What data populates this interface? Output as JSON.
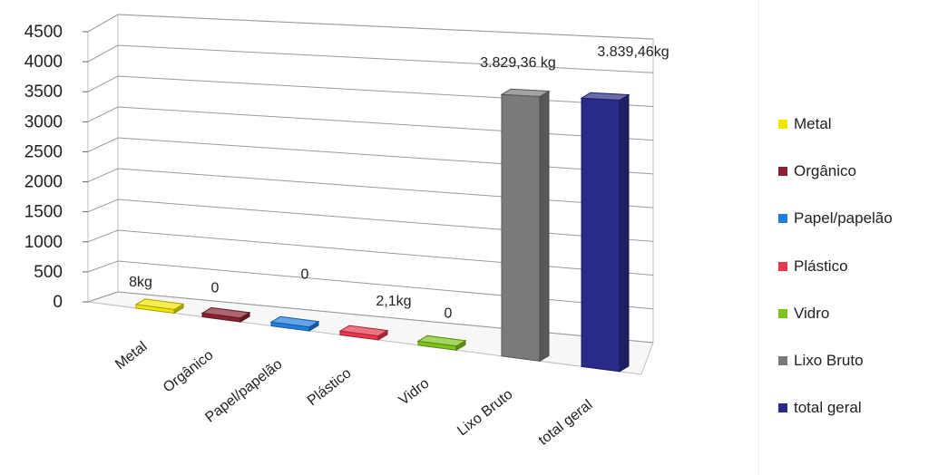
{
  "chart_data": {
    "type": "bar",
    "categories": [
      "Metal",
      "Orgânico",
      "Papel/papelão",
      "Plástico",
      "Vidro",
      "Lixo Bruto",
      "total geral"
    ],
    "values": [
      8,
      0,
      0,
      2.1,
      0,
      3829.36,
      3839.46
    ],
    "data_labels": [
      "8kg",
      "0",
      "0",
      "2,1kg",
      "0",
      "3.829,36 kg",
      "3.839,46kg"
    ],
    "colors": [
      "#f2e600",
      "#8b2232",
      "#1f7fe0",
      "#e8364a",
      "#7cc41a",
      "#7a7a7a",
      "#2a2a8a"
    ],
    "ylim": [
      0,
      4500
    ],
    "yticks": [
      "0",
      "500",
      "1000",
      "1500",
      "2000",
      "2500",
      "3000",
      "3500",
      "4000",
      "4500"
    ],
    "grid": true,
    "style": "3d-column",
    "legend_position": "right",
    "legend": [
      {
        "label": "Metal",
        "color": "#f2e600"
      },
      {
        "label": "Orgânico",
        "color": "#8b2232"
      },
      {
        "label": "Papel/papelão",
        "color": "#1f7fe0"
      },
      {
        "label": "Plástico",
        "color": "#e8364a"
      },
      {
        "label": "Vidro",
        "color": "#7cc41a"
      },
      {
        "label": "Lixo Bruto",
        "color": "#7a7a7a"
      },
      {
        "label": "total geral",
        "color": "#2a2a8a"
      }
    ]
  }
}
